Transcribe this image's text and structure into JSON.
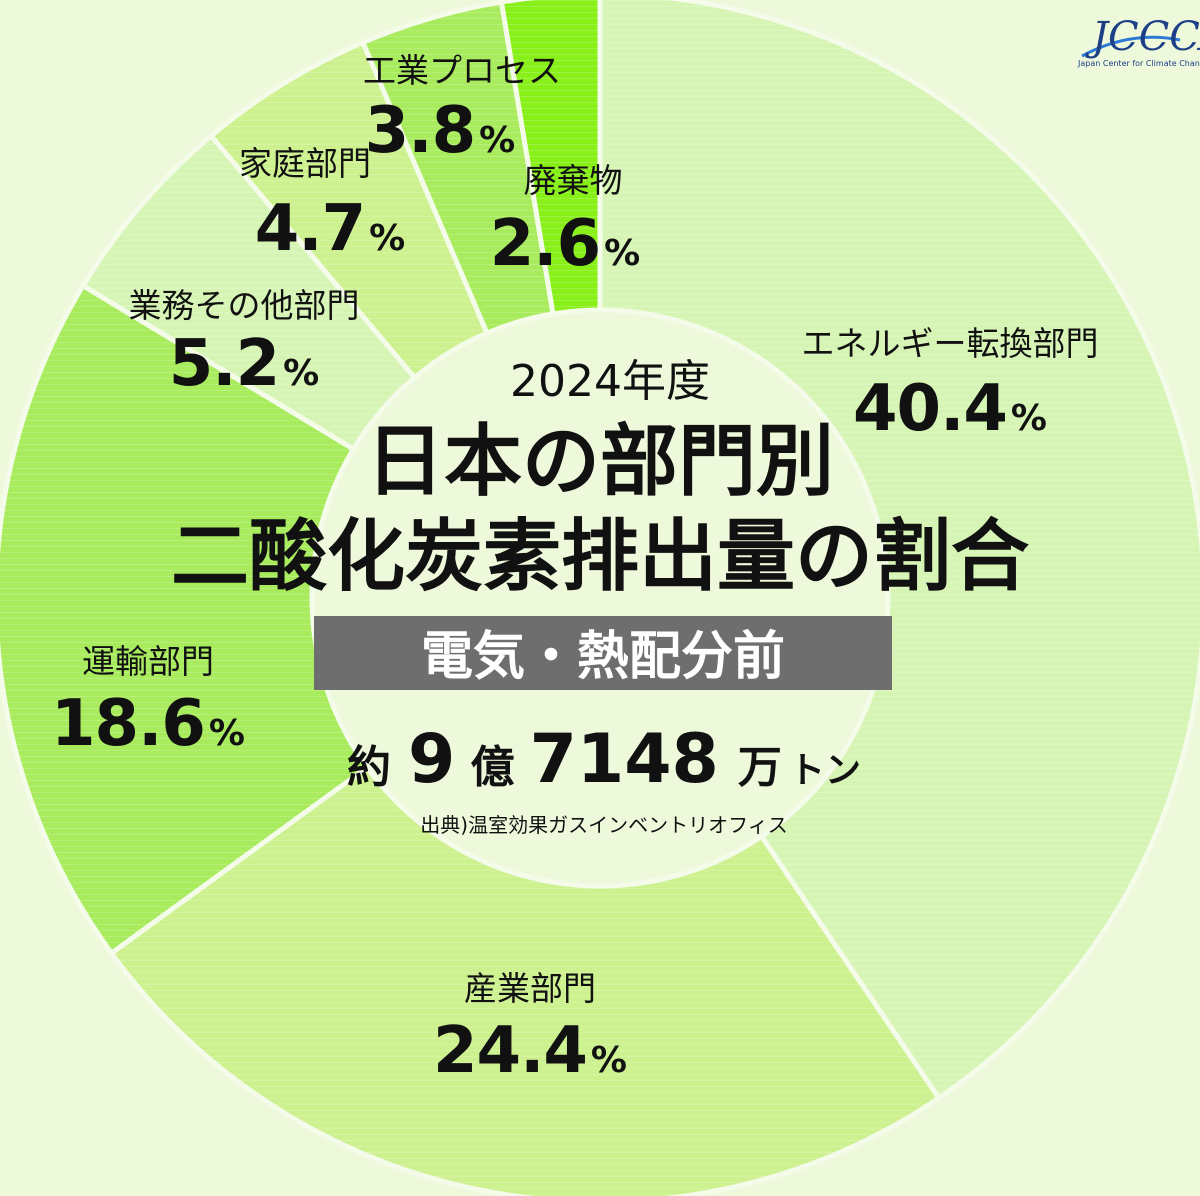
{
  "chart_data": {
    "type": "pie",
    "year_label": "2024年度",
    "title_line1": "日本の部門別",
    "title_line2": "二酸化炭素排出量の割合",
    "subtitle": "電気・熱配分前",
    "total": {
      "prefix": "約",
      "n1": "9",
      "u1": "億",
      "n2": "7148",
      "u2": "万",
      "u3": "トン"
    },
    "source": "出典)温室効果ガスインベントリオフィス",
    "slices": [
      {
        "label": "エネルギー転換部門",
        "value": 40.4,
        "value_text": "40.4",
        "color": "#d6f5b4"
      },
      {
        "label": "産業部門",
        "value": 24.4,
        "value_text": "24.4",
        "color": "#ccf18e"
      },
      {
        "label": "運輸部門",
        "value": 18.6,
        "value_text": "18.6",
        "color": "#a8ec5e"
      },
      {
        "label": "業務その他部門",
        "value": 5.2,
        "value_text": "5.2",
        "color": "#d6f5b4"
      },
      {
        "label": "家庭部門",
        "value": 4.7,
        "value_text": "4.7",
        "color": "#ccf18e"
      },
      {
        "label": "工業プロセス",
        "value": 3.8,
        "value_text": "3.8",
        "color": "#a8ec5e"
      },
      {
        "label": "廃棄物",
        "value": 2.6,
        "value_text": "2.6",
        "color": "#88f018"
      }
    ],
    "percent_symbol": "%"
  },
  "logo": {
    "text": "JCCCA",
    "subtext": "Japan Center for Climate Change Actions"
  }
}
